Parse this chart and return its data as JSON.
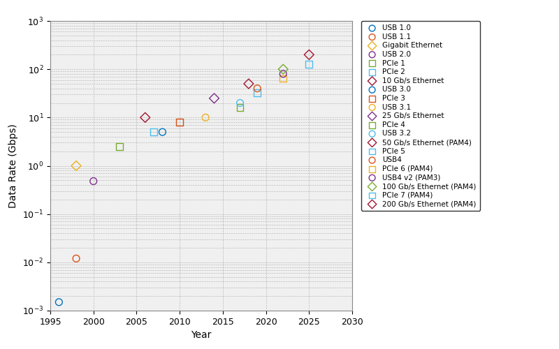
{
  "title": "",
  "xlabel": "Year",
  "ylabel": "Data Rate (Gbps)",
  "xlim": [
    1995,
    2030
  ],
  "ylim_log": [
    -3,
    3
  ],
  "series": [
    {
      "label": "USB 1.0",
      "year": 1996,
      "rate": 0.0015,
      "marker": "o",
      "color": "#0072BD",
      "facecolor": "none"
    },
    {
      "label": "USB 1.1",
      "year": 1998,
      "rate": 0.012,
      "marker": "o",
      "color": "#D95319",
      "facecolor": "none"
    },
    {
      "label": "Gigabit Ethernet",
      "year": 1998,
      "rate": 1.0,
      "marker": "D",
      "color": "#EDB120",
      "facecolor": "none"
    },
    {
      "label": "USB 2.0",
      "year": 2000,
      "rate": 0.48,
      "marker": "o",
      "color": "#7E2F8E",
      "facecolor": "none"
    },
    {
      "label": "PCIe 1",
      "year": 2003,
      "rate": 2.5,
      "marker": "s",
      "color": "#77AC30",
      "facecolor": "none"
    },
    {
      "label": "PCIe 2",
      "year": 2007,
      "rate": 5.0,
      "marker": "s",
      "color": "#4DBEEE",
      "facecolor": "none"
    },
    {
      "label": "10 Gb/s Ethernet",
      "year": 2006,
      "rate": 10.0,
      "marker": "D",
      "color": "#A2142F",
      "facecolor": "none"
    },
    {
      "label": "USB 3.0",
      "year": 2008,
      "rate": 5.0,
      "marker": "o",
      "color": "#0072BD",
      "facecolor": "none"
    },
    {
      "label": "PCIe 3",
      "year": 2010,
      "rate": 8.0,
      "marker": "s",
      "color": "#D95319",
      "facecolor": "none"
    },
    {
      "label": "USB 3.1",
      "year": 2013,
      "rate": 10.0,
      "marker": "o",
      "color": "#EDB120",
      "facecolor": "none"
    },
    {
      "label": "25 Gb/s Ethernet",
      "year": 2014,
      "rate": 25.0,
      "marker": "D",
      "color": "#7E2F8E",
      "facecolor": "none"
    },
    {
      "label": "PCIe 4",
      "year": 2017,
      "rate": 16.0,
      "marker": "s",
      "color": "#77AC30",
      "facecolor": "none"
    },
    {
      "label": "USB 3.2",
      "year": 2017,
      "rate": 20.0,
      "marker": "o",
      "color": "#4DBEEE",
      "facecolor": "none"
    },
    {
      "label": "50 Gb/s Ethernet (PAM4)",
      "year": 2018,
      "rate": 50.0,
      "marker": "D",
      "color": "#A2142F",
      "facecolor": "none"
    },
    {
      "label": "PCIe 5",
      "year": 2019,
      "rate": 32.0,
      "marker": "s",
      "color": "#4DBEEE",
      "facecolor": "none"
    },
    {
      "label": "USB4",
      "year": 2019,
      "rate": 40.0,
      "marker": "o",
      "color": "#D95319",
      "facecolor": "none"
    },
    {
      "label": "PCIe 6 (PAM4)",
      "year": 2022,
      "rate": 64.0,
      "marker": "s",
      "color": "#EDB120",
      "facecolor": "none"
    },
    {
      "label": "USB4 v2 (PAM3)",
      "year": 2022,
      "rate": 80.0,
      "marker": "o",
      "color": "#7E2F8E",
      "facecolor": "none"
    },
    {
      "label": "100 Gb/s Ethernet (PAM4)",
      "year": 2022,
      "rate": 100.0,
      "marker": "D",
      "color": "#77AC30",
      "facecolor": "none"
    },
    {
      "label": "PCIe 7 (PAM4)",
      "year": 2025,
      "rate": 128.0,
      "marker": "s",
      "color": "#4DBEEE",
      "facecolor": "none"
    },
    {
      "label": "200 Gb/s Ethernet (PAM4)",
      "year": 2025,
      "rate": 200.0,
      "marker": "D",
      "color": "#A2142F",
      "facecolor": "none"
    }
  ],
  "legend_fontsize": 7.5,
  "axis_fontsize": 10,
  "tick_fontsize": 9,
  "figsize": [
    8.0,
    5.0
  ],
  "dpi": 100,
  "plot_bg": "#f0f0f0",
  "fig_bg": "#ffffff"
}
